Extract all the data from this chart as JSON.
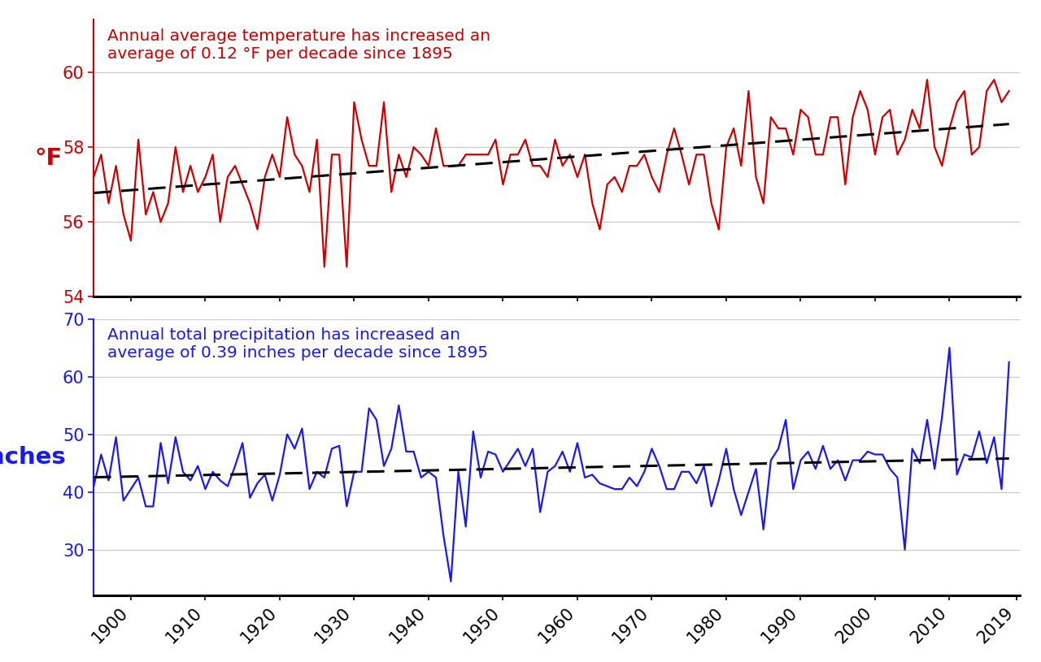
{
  "years": [
    1895,
    1896,
    1897,
    1898,
    1899,
    1900,
    1901,
    1902,
    1903,
    1904,
    1905,
    1906,
    1907,
    1908,
    1909,
    1910,
    1911,
    1912,
    1913,
    1914,
    1915,
    1916,
    1917,
    1918,
    1919,
    1920,
    1921,
    1922,
    1923,
    1924,
    1925,
    1926,
    1927,
    1928,
    1929,
    1930,
    1931,
    1932,
    1933,
    1934,
    1935,
    1936,
    1937,
    1938,
    1939,
    1940,
    1941,
    1942,
    1943,
    1944,
    1945,
    1946,
    1947,
    1948,
    1949,
    1950,
    1951,
    1952,
    1953,
    1954,
    1955,
    1956,
    1957,
    1958,
    1959,
    1960,
    1961,
    1962,
    1963,
    1964,
    1965,
    1966,
    1967,
    1968,
    1969,
    1970,
    1971,
    1972,
    1973,
    1974,
    1975,
    1976,
    1977,
    1978,
    1979,
    1980,
    1981,
    1982,
    1983,
    1984,
    1985,
    1986,
    1987,
    1988,
    1989,
    1990,
    1991,
    1992,
    1993,
    1994,
    1995,
    1996,
    1997,
    1998,
    1999,
    2000,
    2001,
    2002,
    2003,
    2004,
    2005,
    2006,
    2007,
    2008,
    2009,
    2010,
    2011,
    2012,
    2013,
    2014,
    2015,
    2016,
    2017,
    2018
  ],
  "temp": [
    57.2,
    57.8,
    56.5,
    57.5,
    56.2,
    55.5,
    58.2,
    56.2,
    56.8,
    56.0,
    56.5,
    58.0,
    56.8,
    57.5,
    56.8,
    57.2,
    57.8,
    56.0,
    57.2,
    57.5,
    57.0,
    56.5,
    55.8,
    57.2,
    57.8,
    57.2,
    58.8,
    57.8,
    57.5,
    56.8,
    58.2,
    54.8,
    57.8,
    57.8,
    54.8,
    59.2,
    58.2,
    57.5,
    57.5,
    59.2,
    56.8,
    57.8,
    57.2,
    58.0,
    57.8,
    57.5,
    58.5,
    57.5,
    57.5,
    57.5,
    57.8,
    57.8,
    57.8,
    57.8,
    58.2,
    57.0,
    57.8,
    57.8,
    58.2,
    57.5,
    57.5,
    57.2,
    58.2,
    57.5,
    57.8,
    57.2,
    57.8,
    56.5,
    55.8,
    57.0,
    57.2,
    56.8,
    57.5,
    57.5,
    57.8,
    57.2,
    56.8,
    57.8,
    58.5,
    57.8,
    57.0,
    57.8,
    57.8,
    56.5,
    55.8,
    58.0,
    58.5,
    57.5,
    59.5,
    57.2,
    56.5,
    58.8,
    58.5,
    58.5,
    57.8,
    59.0,
    58.8,
    57.8,
    57.8,
    58.8,
    58.8,
    57.0,
    58.8,
    59.5,
    59.0,
    57.8,
    58.8,
    59.0,
    57.8,
    58.2,
    59.0,
    58.5,
    59.8,
    58.0,
    57.5,
    58.5,
    59.2,
    59.5,
    57.8,
    58.0,
    59.5,
    59.8,
    59.2,
    59.5
  ],
  "precip": [
    41.0,
    46.5,
    42.0,
    49.5,
    38.5,
    40.5,
    42.5,
    37.5,
    37.5,
    48.5,
    41.5,
    49.5,
    43.5,
    42.0,
    44.5,
    40.5,
    43.5,
    42.0,
    41.0,
    44.5,
    48.5,
    39.0,
    41.5,
    43.0,
    38.5,
    43.0,
    50.0,
    47.5,
    51.0,
    40.5,
    43.5,
    42.5,
    47.5,
    48.0,
    37.5,
    43.5,
    43.5,
    54.5,
    52.5,
    44.5,
    47.5,
    55.0,
    47.0,
    47.0,
    42.5,
    43.5,
    42.5,
    32.5,
    24.5,
    43.5,
    34.0,
    50.5,
    42.5,
    47.0,
    46.5,
    43.5,
    45.5,
    47.5,
    44.5,
    47.5,
    36.5,
    43.5,
    44.5,
    47.0,
    43.5,
    48.5,
    42.5,
    43.0,
    41.5,
    41.0,
    40.5,
    40.5,
    42.5,
    41.0,
    43.5,
    47.5,
    44.5,
    40.5,
    40.5,
    43.5,
    43.5,
    41.5,
    44.5,
    37.5,
    42.0,
    47.5,
    40.5,
    36.0,
    40.0,
    44.0,
    33.5,
    45.5,
    47.5,
    52.5,
    40.5,
    45.5,
    47.0,
    44.0,
    48.0,
    44.0,
    45.5,
    42.0,
    45.5,
    45.5,
    47.0,
    46.5,
    46.5,
    44.0,
    42.5,
    30.0,
    47.5,
    45.0,
    52.5,
    44.0,
    53.0,
    65.0,
    43.0,
    46.5,
    46.0,
    50.5,
    45.0,
    49.5,
    40.5,
    62.5
  ],
  "temp_color": "#cc0000",
  "precip_color": "#1a1aee",
  "trend_color": "black",
  "temp_ylabel": "°F",
  "precip_ylabel": "Inches",
  "temp_annotation": "Annual average temperature has increased an\naverage of 0.12 °F per decade since 1895",
  "precip_annotation": "Annual total precipitation has increased an\naverage of 0.39 inches per decade since 1895",
  "temp_ylim": [
    54.0,
    61.4
  ],
  "precip_ylim": [
    22.0,
    70.0
  ],
  "temp_yticks": [
    54,
    56,
    58,
    60
  ],
  "precip_yticks": [
    30,
    40,
    50,
    60,
    70
  ],
  "xticks": [
    1900,
    1910,
    1920,
    1930,
    1940,
    1950,
    1960,
    1970,
    1980,
    1990,
    2000,
    2010,
    2019
  ],
  "annotation_fontsize": 14.5,
  "ylabel_fontsize": 21,
  "tick_fontsize": 15,
  "line_width": 1.6,
  "trend_linewidth": 2.2,
  "background_color": "#ffffff"
}
